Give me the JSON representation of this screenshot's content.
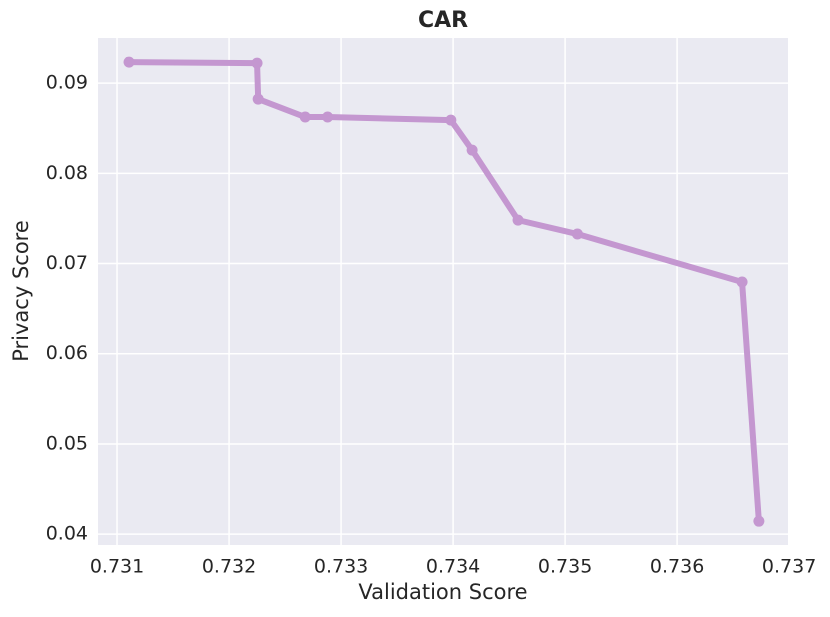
{
  "chart_data": {
    "type": "line",
    "title": "CAR",
    "x_label": "Validation Score",
    "y_label": "Privacy Score",
    "series": [
      {
        "name": "CAR",
        "color": "#c497d0",
        "x": [
          0.731107,
          0.73225,
          0.73226,
          0.73268,
          0.73288,
          0.73398,
          0.73417,
          0.73458,
          0.73511,
          0.73658,
          0.73673
        ],
        "values": [
          0.09233,
          0.09222,
          0.08823,
          0.08624,
          0.08624,
          0.0859,
          0.08257,
          0.07481,
          0.07327,
          0.06795,
          0.04144
        ]
      }
    ],
    "xlim": [
      0.73083,
      0.73699
    ],
    "ylim": [
      0.0388,
      0.095
    ],
    "xticks": [
      0.731,
      0.732,
      0.733,
      0.734,
      0.735,
      0.736,
      0.737
    ],
    "yticks": [
      0.04,
      0.05,
      0.06,
      0.07,
      0.08,
      0.09
    ],
    "grid": true
  }
}
